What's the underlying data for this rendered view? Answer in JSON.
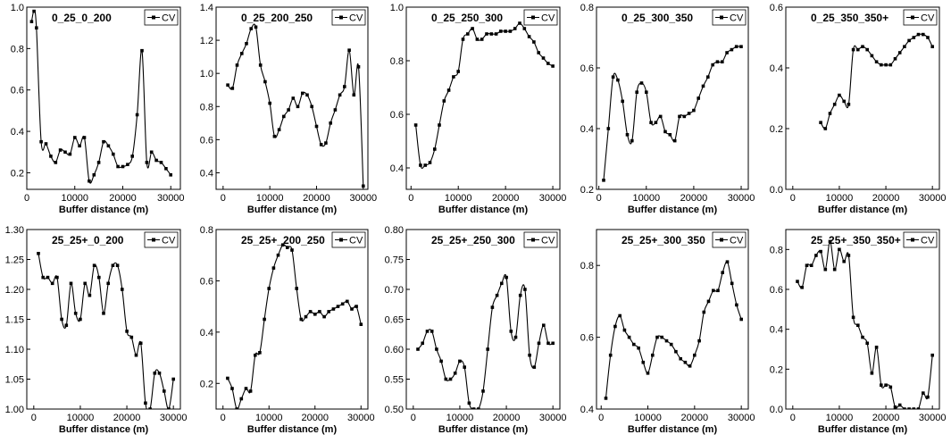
{
  "chart_data": [
    {
      "type": "line",
      "title": "0_25_0_200",
      "xlabel": "Buffer distance (m)",
      "ylabel": "",
      "xlim": [
        0,
        32000
      ],
      "ylim": [
        0.12,
        1.0
      ],
      "xticks": [
        0,
        10000,
        20000,
        30000
      ],
      "yticks": [
        0.2,
        0.4,
        0.6,
        0.8,
        1.0
      ],
      "ytick_labels": [
        "0.2",
        "0.4",
        "0.6",
        "0.8",
        "1.0"
      ],
      "legend": "top-right",
      "series": [
        {
          "name": "CV",
          "x": [
            1000,
            1500,
            2000,
            3000,
            4000,
            5000,
            6000,
            7000,
            8000,
            9000,
            10000,
            11000,
            12000,
            13000,
            14000,
            15000,
            16000,
            17000,
            18000,
            19000,
            20000,
            21000,
            22000,
            23000,
            24000,
            25000,
            26000,
            27000,
            28000,
            29000,
            30000
          ],
          "y": [
            0.93,
            0.98,
            0.9,
            0.35,
            0.34,
            0.28,
            0.25,
            0.31,
            0.3,
            0.29,
            0.37,
            0.33,
            0.37,
            0.16,
            0.19,
            0.25,
            0.35,
            0.33,
            0.29,
            0.23,
            0.23,
            0.24,
            0.28,
            0.48,
            0.79,
            0.25,
            0.3,
            0.26,
            0.25,
            0.22,
            0.19
          ]
        }
      ]
    },
    {
      "type": "line",
      "title": "0_25_200_250",
      "xlabel": "Buffer distance (m)",
      "ylabel": "",
      "xlim": [
        -1500,
        31000
      ],
      "ylim": [
        0.3,
        1.4
      ],
      "xticks": [
        0,
        10000,
        20000,
        30000
      ],
      "yticks": [
        0.4,
        0.6,
        0.8,
        1.0,
        1.2,
        1.4
      ],
      "ytick_labels": [
        "0.4",
        "0.6",
        "0.8",
        "1.0",
        "1.2",
        "1.4"
      ],
      "legend": "top-right",
      "series": [
        {
          "name": "CV",
          "x": [
            1000,
            2000,
            3000,
            4000,
            5000,
            6000,
            7000,
            8000,
            9000,
            10000,
            11000,
            12000,
            13000,
            14000,
            15000,
            16000,
            17000,
            18000,
            19000,
            20000,
            21000,
            22000,
            23000,
            24000,
            25000,
            26000,
            27000,
            28000,
            29000,
            30000
          ],
          "y": [
            0.93,
            0.91,
            1.05,
            1.12,
            1.18,
            1.27,
            1.28,
            1.05,
            0.95,
            0.82,
            0.62,
            0.66,
            0.74,
            0.78,
            0.85,
            0.8,
            0.88,
            0.87,
            0.8,
            0.68,
            0.57,
            0.58,
            0.7,
            0.78,
            0.87,
            0.92,
            1.14,
            0.87,
            1.04,
            0.32
          ]
        }
      ]
    },
    {
      "type": "line",
      "title": "0_25_250_300",
      "xlabel": "Buffer distance (m)",
      "ylabel": "",
      "xlim": [
        -1000,
        31500
      ],
      "ylim": [
        0.32,
        1.0
      ],
      "xticks": [
        0,
        10000,
        20000,
        30000
      ],
      "yticks": [
        0.4,
        0.6,
        0.8,
        1.0
      ],
      "ytick_labels": [
        "0.4",
        "0.6",
        "0.8",
        "1.0"
      ],
      "legend": "top-right",
      "series": [
        {
          "name": "CV",
          "x": [
            1000,
            2000,
            3000,
            4000,
            5000,
            6000,
            7000,
            8000,
            9000,
            10000,
            11000,
            12000,
            13000,
            14000,
            15000,
            16000,
            17000,
            18000,
            19000,
            20000,
            21000,
            22000,
            23000,
            24000,
            25000,
            26000,
            27000,
            28000,
            29000,
            30000
          ],
          "y": [
            0.56,
            0.41,
            0.41,
            0.42,
            0.47,
            0.56,
            0.65,
            0.69,
            0.74,
            0.76,
            0.88,
            0.9,
            0.92,
            0.88,
            0.88,
            0.9,
            0.9,
            0.9,
            0.91,
            0.91,
            0.91,
            0.92,
            0.94,
            0.92,
            0.89,
            0.87,
            0.83,
            0.81,
            0.79,
            0.78
          ]
        }
      ]
    },
    {
      "type": "line",
      "title": "0_25_300_350",
      "xlabel": "Buffer distance (m)",
      "ylabel": "",
      "xlim": [
        -500,
        31500
      ],
      "ylim": [
        0.2,
        0.8
      ],
      "xticks": [
        0,
        10000,
        20000,
        30000
      ],
      "yticks": [
        0.2,
        0.4,
        0.6,
        0.8
      ],
      "ytick_labels": [
        "0.2",
        "0.4",
        "0.6",
        "0.8"
      ],
      "legend": "top-right",
      "series": [
        {
          "name": "CV",
          "x": [
            1000,
            2000,
            3000,
            4000,
            5000,
            6000,
            7000,
            8000,
            9000,
            10000,
            11000,
            12000,
            13000,
            14000,
            15000,
            16000,
            17000,
            18000,
            19000,
            20000,
            21000,
            22000,
            23000,
            24000,
            25000,
            26000,
            27000,
            28000,
            29000,
            30000
          ],
          "y": [
            0.23,
            0.4,
            0.57,
            0.56,
            0.49,
            0.38,
            0.36,
            0.52,
            0.55,
            0.52,
            0.42,
            0.42,
            0.44,
            0.39,
            0.38,
            0.36,
            0.44,
            0.44,
            0.45,
            0.46,
            0.5,
            0.54,
            0.57,
            0.61,
            0.62,
            0.62,
            0.65,
            0.66,
            0.67,
            0.67
          ]
        }
      ]
    },
    {
      "type": "line",
      "title": "0_25_350_350+",
      "xlabel": "Buffer distance (m)",
      "ylabel": "",
      "xlim": [
        -1500,
        31500
      ],
      "ylim": [
        0.0,
        0.6
      ],
      "xticks": [
        0,
        10000,
        20000,
        30000
      ],
      "yticks": [
        0.0,
        0.2,
        0.4,
        0.6
      ],
      "ytick_labels": [
        "0.0",
        "0.2",
        "0.4",
        "0.6"
      ],
      "legend": "top-right",
      "series": [
        {
          "name": "CV",
          "x": [
            6000,
            7000,
            8000,
            9000,
            10000,
            11000,
            12000,
            13000,
            14000,
            15000,
            16000,
            17000,
            18000,
            19000,
            20000,
            21000,
            22000,
            23000,
            24000,
            25000,
            26000,
            27000,
            28000,
            29000,
            30000
          ],
          "y": [
            0.22,
            0.2,
            0.25,
            0.28,
            0.31,
            0.29,
            0.28,
            0.46,
            0.46,
            0.47,
            0.46,
            0.44,
            0.42,
            0.41,
            0.41,
            0.41,
            0.43,
            0.45,
            0.47,
            0.49,
            0.5,
            0.51,
            0.51,
            0.5,
            0.47
          ]
        }
      ]
    },
    {
      "type": "line",
      "title": "25_25+_0_200",
      "xlabel": "Buffer distance (m)",
      "ylabel": "",
      "xlim": [
        -1500,
        31500
      ],
      "ylim": [
        1.0,
        1.3
      ],
      "xticks": [
        0,
        10000,
        20000,
        30000
      ],
      "yticks": [
        1.0,
        1.05,
        1.1,
        1.15,
        1.2,
        1.25,
        1.3
      ],
      "ytick_labels": [
        "1.00",
        "1.05",
        "1.10",
        "1.15",
        "1.20",
        "1.25",
        "1.30"
      ],
      "legend": "top-right",
      "series": [
        {
          "name": "CV",
          "x": [
            1000,
            2000,
            3000,
            4000,
            5000,
            6000,
            7000,
            8000,
            9000,
            10000,
            11000,
            12000,
            13000,
            14000,
            15000,
            16000,
            17000,
            18000,
            19000,
            20000,
            21000,
            22000,
            23000,
            24000,
            25000,
            26000,
            27000,
            28000,
            29000,
            30000
          ],
          "y": [
            1.26,
            1.22,
            1.22,
            1.21,
            1.22,
            1.15,
            1.14,
            1.21,
            1.16,
            1.15,
            1.21,
            1.19,
            1.24,
            1.22,
            1.16,
            1.21,
            1.24,
            1.24,
            1.2,
            1.13,
            1.12,
            1.09,
            1.11,
            1.01,
            1.0,
            1.06,
            1.06,
            1.03,
            1.0,
            1.05
          ]
        }
      ]
    },
    {
      "type": "line",
      "title": "25_25+_200_250",
      "xlabel": "Buffer distance (m)",
      "ylabel": "",
      "xlim": [
        -1500,
        31500
      ],
      "ylim": [
        0.1,
        0.8
      ],
      "xticks": [
        0,
        10000,
        20000,
        30000
      ],
      "yticks": [
        0.2,
        0.4,
        0.6,
        0.8
      ],
      "ytick_labels": [
        "0.2",
        "0.4",
        "0.6",
        "0.8"
      ],
      "legend": "top-right",
      "series": [
        {
          "name": "CV",
          "x": [
            1000,
            2000,
            3000,
            4000,
            5000,
            6000,
            7000,
            8000,
            9000,
            10000,
            11000,
            12000,
            13000,
            14000,
            15000,
            16000,
            17000,
            18000,
            19000,
            20000,
            21000,
            22000,
            23000,
            24000,
            25000,
            26000,
            27000,
            28000,
            29000,
            30000
          ],
          "y": [
            0.22,
            0.18,
            0.1,
            0.14,
            0.18,
            0.17,
            0.31,
            0.32,
            0.45,
            0.57,
            0.65,
            0.7,
            0.74,
            0.73,
            0.72,
            0.57,
            0.45,
            0.46,
            0.48,
            0.47,
            0.48,
            0.46,
            0.48,
            0.49,
            0.5,
            0.51,
            0.52,
            0.49,
            0.5,
            0.43
          ]
        }
      ]
    },
    {
      "type": "line",
      "title": "25_25+_250_300",
      "xlabel": "Buffer distance (m)",
      "ylabel": "",
      "xlim": [
        -1500,
        31500
      ],
      "ylim": [
        0.5,
        0.8
      ],
      "xticks": [
        0,
        10000,
        20000,
        30000
      ],
      "yticks": [
        0.5,
        0.55,
        0.6,
        0.65,
        0.7,
        0.75,
        0.8
      ],
      "ytick_labels": [
        "0.50",
        "0.55",
        "0.60",
        "0.65",
        "0.70",
        "0.75",
        "0.80"
      ],
      "legend": "top-right",
      "series": [
        {
          "name": "CV",
          "x": [
            1000,
            2000,
            3000,
            4000,
            5000,
            6000,
            7000,
            8000,
            9000,
            10000,
            11000,
            12000,
            13000,
            14000,
            15000,
            16000,
            17000,
            18000,
            19000,
            20000,
            21000,
            22000,
            23000,
            24000,
            25000,
            26000,
            27000,
            28000,
            29000,
            30000
          ],
          "y": [
            0.6,
            0.61,
            0.63,
            0.63,
            0.6,
            0.58,
            0.55,
            0.55,
            0.56,
            0.58,
            0.57,
            0.51,
            0.5,
            0.5,
            0.53,
            0.6,
            0.67,
            0.69,
            0.71,
            0.72,
            0.63,
            0.62,
            0.69,
            0.7,
            0.59,
            0.57,
            0.61,
            0.64,
            0.61,
            0.61
          ]
        }
      ]
    },
    {
      "type": "line",
      "title": "25_25+_300_350",
      "xlabel": "Buffer distance (m)",
      "ylabel": "",
      "xlim": [
        -1000,
        31500
      ],
      "ylim": [
        0.4,
        0.9
      ],
      "xticks": [
        0,
        10000,
        20000,
        30000
      ],
      "yticks": [
        0.4,
        0.6,
        0.8
      ],
      "ytick_labels": [
        "0.4",
        "0.6",
        "0.8"
      ],
      "legend": "top-right",
      "series": [
        {
          "name": "CV",
          "x": [
            1000,
            2000,
            3000,
            4000,
            5000,
            6000,
            7000,
            8000,
            9000,
            10000,
            11000,
            12000,
            13000,
            14000,
            15000,
            16000,
            17000,
            18000,
            19000,
            20000,
            21000,
            22000,
            23000,
            24000,
            25000,
            26000,
            27000,
            28000,
            29000,
            30000
          ],
          "y": [
            0.43,
            0.55,
            0.63,
            0.66,
            0.62,
            0.6,
            0.58,
            0.57,
            0.53,
            0.5,
            0.55,
            0.6,
            0.6,
            0.59,
            0.58,
            0.56,
            0.54,
            0.53,
            0.52,
            0.55,
            0.59,
            0.67,
            0.7,
            0.73,
            0.73,
            0.78,
            0.81,
            0.75,
            0.69,
            0.65
          ]
        }
      ]
    },
    {
      "type": "line",
      "title": "25_25+_350_350+",
      "xlabel": "Buffer distance (m)",
      "ylabel": "",
      "xlim": [
        -1500,
        31500
      ],
      "ylim": [
        0.0,
        0.9
      ],
      "xticks": [
        0,
        10000,
        20000,
        30000
      ],
      "yticks": [
        0.0,
        0.2,
        0.4,
        0.6,
        0.8
      ],
      "ytick_labels": [
        "0.0",
        "0.2",
        "0.4",
        "0.6",
        "0.8"
      ],
      "legend": "top-right",
      "series": [
        {
          "name": "CV",
          "x": [
            1000,
            2000,
            3000,
            4000,
            5000,
            6000,
            7000,
            8000,
            9000,
            10000,
            11000,
            12000,
            13000,
            14000,
            15000,
            16000,
            17000,
            18000,
            19000,
            20000,
            21000,
            22000,
            23000,
            24000,
            25000,
            26000,
            27000,
            28000,
            29000,
            30000
          ],
          "y": [
            0.64,
            0.61,
            0.72,
            0.72,
            0.77,
            0.79,
            0.7,
            0.84,
            0.7,
            0.8,
            0.74,
            0.77,
            0.46,
            0.42,
            0.36,
            0.33,
            0.18,
            0.31,
            0.12,
            0.12,
            0.11,
            0.01,
            0.02,
            0.0,
            0.0,
            0.0,
            0.0,
            0.08,
            0.06,
            0.27
          ]
        }
      ]
    }
  ]
}
